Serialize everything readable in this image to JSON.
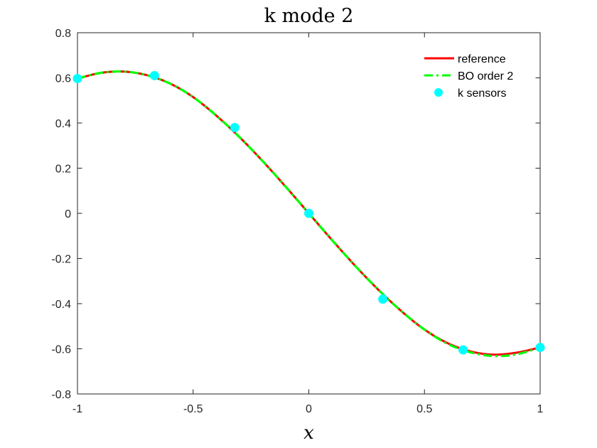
{
  "chart_data": {
    "type": "line",
    "title": "k mode 2",
    "xlabel": "x",
    "ylabel": "",
    "xlim": [
      -1,
      1
    ],
    "ylim": [
      -0.8,
      0.8
    ],
    "xticks": [
      -1,
      -0.5,
      0,
      0.5,
      1
    ],
    "xtick_labels": [
      "-1",
      "-0.5",
      "0",
      "0.5",
      "1"
    ],
    "yticks": [
      -0.8,
      -0.6,
      -0.4,
      -0.2,
      0,
      0.2,
      0.4,
      0.6,
      0.8
    ],
    "ytick_labels": [
      "-0.8",
      "-0.6",
      "-0.4",
      "-0.2",
      "0",
      "0.2",
      "0.4",
      "0.6",
      "0.8"
    ],
    "grid": false,
    "legend_position": "top-right",
    "series": [
      {
        "name": "reference",
        "color": "#ff0000",
        "style": "solid",
        "x": [
          -1,
          -0.9,
          -0.8,
          -0.7,
          -0.6,
          -0.5,
          -0.4,
          -0.3,
          -0.2,
          -0.1,
          0,
          0.1,
          0.2,
          0.3,
          0.4,
          0.5,
          0.6,
          0.7,
          0.8,
          0.9,
          1
        ],
        "y": [
          0.597,
          0.622,
          0.628,
          0.612,
          0.575,
          0.515,
          0.433,
          0.338,
          0.232,
          0.118,
          0,
          -0.118,
          -0.232,
          -0.338,
          -0.433,
          -0.515,
          -0.575,
          -0.612,
          -0.626,
          -0.617,
          -0.594
        ]
      },
      {
        "name": "BO order 2",
        "color": "#00ff00",
        "style": "dash-dot",
        "x": [
          -1,
          -0.9,
          -0.8,
          -0.7,
          -0.6,
          -0.5,
          -0.4,
          -0.3,
          -0.2,
          -0.1,
          0,
          0.1,
          0.2,
          0.3,
          0.4,
          0.5,
          0.6,
          0.7,
          0.8,
          0.9,
          1
        ],
        "y": [
          0.597,
          0.622,
          0.628,
          0.612,
          0.575,
          0.515,
          0.433,
          0.338,
          0.232,
          0.118,
          0,
          -0.118,
          -0.232,
          -0.338,
          -0.433,
          -0.515,
          -0.578,
          -0.616,
          -0.632,
          -0.624,
          -0.594
        ]
      },
      {
        "name": "k sensors",
        "color": "#00ffff",
        "style": "markers",
        "x": [
          -1,
          -0.667,
          -0.32,
          0,
          0.32,
          0.667,
          1
        ],
        "y": [
          0.597,
          0.61,
          0.38,
          0,
          -0.38,
          -0.605,
          -0.594
        ]
      }
    ]
  }
}
